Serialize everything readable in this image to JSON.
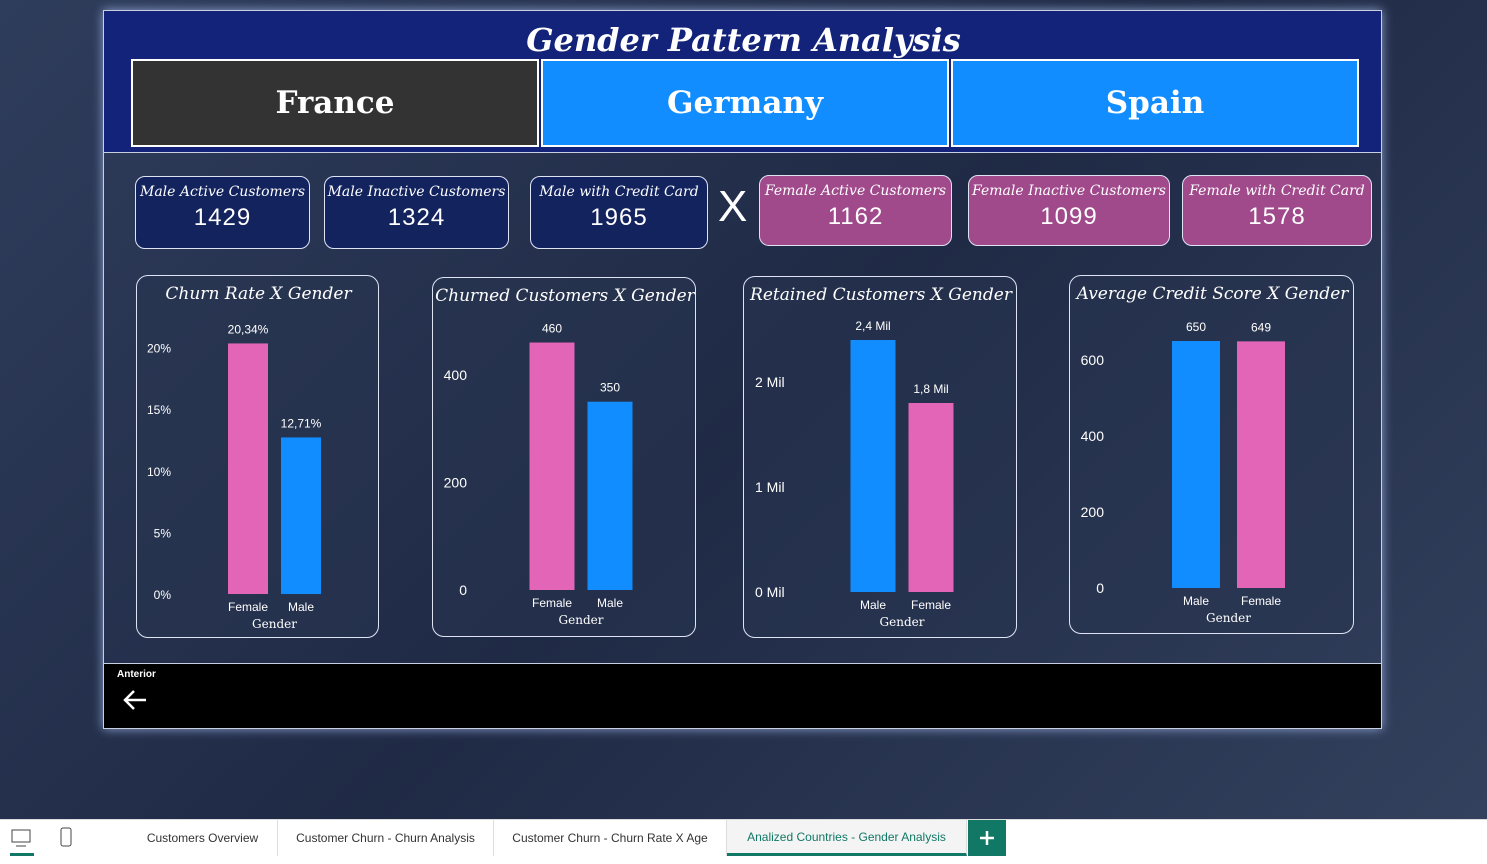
{
  "header": {
    "title": "Gender Pattern Analysis"
  },
  "slicer": {
    "options": [
      "France",
      "Germany",
      "Spain"
    ],
    "selected": "France"
  },
  "kpis": [
    {
      "label": "Male Active Customers",
      "value": 1429
    },
    {
      "label": "Male Inactive Customers",
      "value": 1324
    },
    {
      "label": "Male with Credit Card",
      "value": 1965
    },
    {
      "label": "Female Active Customers",
      "value": 1162
    },
    {
      "label": "Female Inactive Customers",
      "value": 1099
    },
    {
      "label": "Female with Credit Card",
      "value": 1578
    }
  ],
  "separator": "X",
  "chart_data": [
    {
      "type": "bar",
      "title": "Churn Rate X Gender",
      "x_label": "Gender",
      "categories": [
        "Female",
        "Male"
      ],
      "values": [
        20.34,
        12.71
      ],
      "value_labels": [
        "20,34%",
        "12,71%"
      ],
      "colors": [
        "#e365b8",
        "#118dff"
      ],
      "ylim": [
        0,
        22
      ],
      "yticks": [
        {
          "value": 0,
          "label": "0%"
        },
        {
          "value": 5,
          "label": "5%"
        },
        {
          "value": 10,
          "label": "10%"
        },
        {
          "value": 15,
          "label": "15%"
        },
        {
          "value": 20,
          "label": "20%"
        }
      ]
    },
    {
      "type": "bar",
      "title": "Churned Customers X Gender",
      "x_label": "Gender",
      "categories": [
        "Female",
        "Male"
      ],
      "values": [
        460,
        350
      ],
      "colors": [
        "#e365b8",
        "#118dff"
      ],
      "ylim": [
        0,
        500
      ],
      "yticks": [
        0,
        200,
        400
      ]
    },
    {
      "type": "bar",
      "title": "Retained Customers X Gender",
      "x_label": "Gender",
      "categories": [
        "Male",
        "Female"
      ],
      "values": [
        2400000,
        1800000
      ],
      "value_labels": [
        "2,4 Mil",
        "1,8 Mil"
      ],
      "colors": [
        "#118dff",
        "#e365b8"
      ],
      "ylim": [
        0,
        2600000
      ],
      "yticks": [
        {
          "value": 0,
          "label": "0 Mil"
        },
        {
          "value": 1000000,
          "label": "1 Mil"
        },
        {
          "value": 2000000,
          "label": "2 Mil"
        }
      ]
    },
    {
      "type": "bar",
      "title": "Average Credit Score X Gender",
      "x_label": "Gender",
      "categories": [
        "Male",
        "Female"
      ],
      "values": [
        650,
        649
      ],
      "colors": [
        "#118dff",
        "#e365b8"
      ],
      "ylim": [
        0,
        700
      ],
      "yticks": [
        0,
        200,
        400,
        600
      ]
    }
  ],
  "nav": {
    "label": "Anterior"
  },
  "tabs": [
    "Customers Overview",
    "Customer Churn - Churn Analysis",
    "Customer Churn - Churn Rate X Age",
    "Analized Countries - Gender Analysis"
  ],
  "active_tab": 3
}
